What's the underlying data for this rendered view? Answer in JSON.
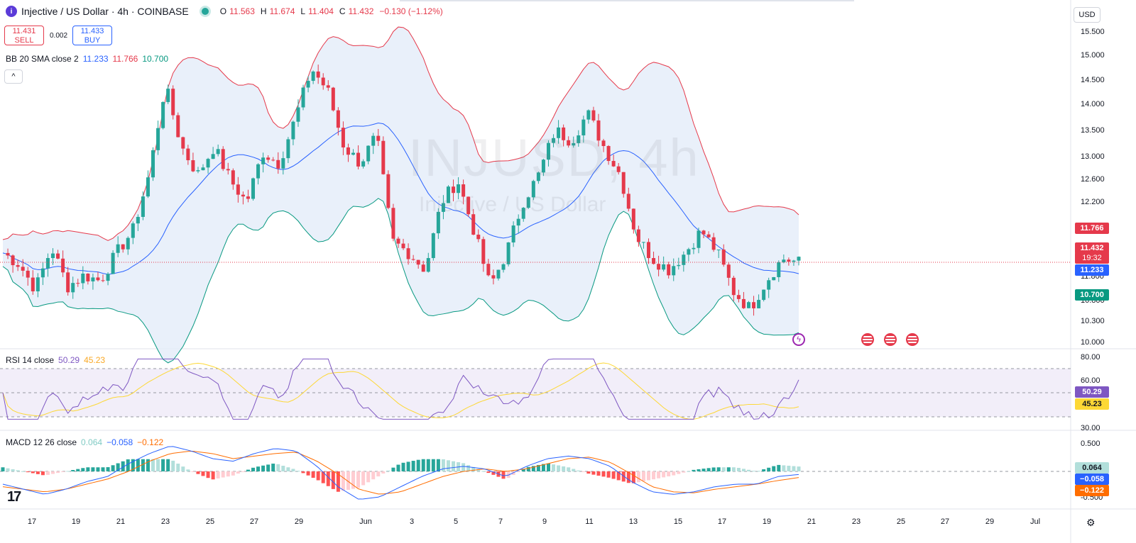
{
  "header": {
    "icon_letter": "i",
    "title": "Injective / US Dollar · 4h · COINBASE",
    "ohlc": {
      "o_label": "O",
      "o": "11.563",
      "h_label": "H",
      "h": "11.674",
      "l_label": "L",
      "l": "11.404",
      "c_label": "C",
      "c": "11.432",
      "chg": "−0.130 (−1.12%)"
    }
  },
  "trade": {
    "sell_price": "11.431",
    "sell_label": "SELL",
    "spread": "0.002",
    "buy_price": "11.433",
    "buy_label": "BUY"
  },
  "indicators": {
    "bb": {
      "label": "BB 20 SMA close 2",
      "basis": "11.233",
      "upper": "11.766",
      "lower": "10.700"
    },
    "rsi": {
      "label": "RSI 14 close",
      "rsi": "50.29",
      "ma": "45.23"
    },
    "macd": {
      "label": "MACD 12 26 close",
      "hist": "0.064",
      "macd": "−0.058",
      "signal": "−0.122"
    }
  },
  "collapse_icon": "^",
  "currency": "USD",
  "watermark": {
    "big": "INJUSD, 4h",
    "small": "Injective / US Dollar"
  },
  "logo_text": "17",
  "colors": {
    "up": "#26a69a",
    "down": "#e5394b",
    "basis": "#2962ff",
    "upper_band": "#e5394b",
    "lower_band": "#089981",
    "band_fill": "#e3ecf9",
    "rsi": "#7e57c2",
    "rsi_ma": "#fdd835",
    "macd": "#2962ff",
    "signal": "#ff6d00"
  },
  "tags": {
    "upper": "11.766",
    "last": "11.432",
    "countdown": "19:32",
    "basis": "11.233",
    "lower": "10.700",
    "rsi": "50.29",
    "rsi_ma": "45.23",
    "hist": "0.064",
    "macd": "−0.058",
    "signal": "−0.122"
  },
  "chart_data": {
    "type": "candlestick",
    "price_axis": [
      "15.500",
      "15.000",
      "14.500",
      "14.000",
      "13.500",
      "13.000",
      "12.600",
      "12.200",
      "11.800",
      "10.800",
      "10.300",
      "10.000"
    ],
    "rsi_axis": [
      "80.00",
      "60.00",
      "30.00"
    ],
    "macd_axis": [
      "0.500",
      "-0.500"
    ],
    "x_labels": [
      "17",
      "19",
      "21",
      "23",
      "25",
      "27",
      "29",
      "Jun",
      "3",
      "5",
      "7",
      "9",
      "11",
      "13",
      "15",
      "17",
      "19",
      "21",
      "23",
      "25",
      "27",
      "29",
      "Jul"
    ],
    "price_ylim": [
      10.0,
      15.7
    ],
    "rsi_levels": {
      "upper": 70,
      "middle": 50,
      "lower": 30
    },
    "close_key": [
      11.6,
      11.4,
      10.95,
      11.7,
      11.0,
      11.2,
      11.1,
      11.6,
      12.0,
      13.0,
      14.6,
      13.5,
      13.0,
      13.5,
      12.9,
      12.5,
      13.4,
      13.2,
      14.0,
      14.9,
      14.5,
      13.5,
      13.2,
      13.7,
      11.8,
      11.6,
      11.3,
      12.5,
      12.9,
      12.0,
      11.0,
      11.6,
      12.5,
      13.0,
      13.8,
      13.6,
      14.1,
      13.5,
      13.0,
      11.9,
      11.5,
      11.3,
      11.6,
      12.0,
      11.6,
      10.9,
      10.6,
      11.1,
      11.5,
      11.43
    ],
    "macd_key": [
      -0.25,
      -0.35,
      -0.45,
      -0.35,
      -0.2,
      -0.1,
      0.15,
      0.35,
      0.5,
      0.4,
      0.25,
      0.2,
      0.35,
      0.45,
      0.4,
      0.1,
      -0.3,
      -0.55,
      -0.5,
      -0.3,
      -0.1,
      0.05,
      0.1,
      0.05,
      -0.1,
      0.1,
      0.25,
      0.3,
      0.25,
      0.1,
      -0.2,
      -0.4,
      -0.45,
      -0.4,
      -0.3,
      -0.25,
      -0.25,
      -0.1,
      -0.06
    ],
    "signal_key": [
      -0.3,
      -0.35,
      -0.4,
      -0.35,
      -0.25,
      -0.15,
      0.0,
      0.2,
      0.35,
      0.4,
      0.35,
      0.25,
      0.3,
      0.35,
      0.38,
      0.2,
      -0.05,
      -0.35,
      -0.45,
      -0.4,
      -0.25,
      -0.1,
      0.0,
      0.05,
      0.0,
      0.05,
      0.15,
      0.25,
      0.28,
      0.18,
      -0.05,
      -0.3,
      -0.4,
      -0.42,
      -0.35,
      -0.3,
      -0.25,
      -0.18,
      -0.12
    ]
  }
}
